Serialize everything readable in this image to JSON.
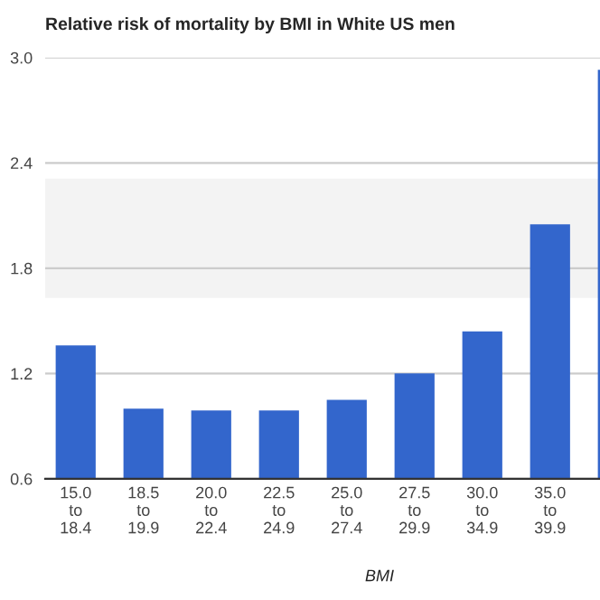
{
  "chart_data": {
    "type": "bar",
    "title": "Relative risk of mortality by BMI in White US men",
    "xlabel": "BMI",
    "categories": [
      "15.0\nto\n18.4",
      "18.5\nto\n19.9",
      "20.0\nto\n22.4",
      "22.5\nto\n24.9",
      "25.0\nto\n27.4",
      "27.5\nto\n29.9",
      "30.0\nto\n34.9",
      "35.0\nto\n39.9",
      null
    ],
    "values": [
      1.36,
      1.0,
      0.99,
      0.99,
      1.05,
      1.2,
      1.44,
      2.05,
      2.93
    ],
    "color": "#3366cc",
    "ylim": [
      0.6,
      3.0
    ],
    "yticks": [
      {
        "value": 0.6,
        "label": "0.6"
      },
      {
        "value": 1.2,
        "label": "1.2"
      },
      {
        "value": 1.8,
        "label": "1.8"
      },
      {
        "value": 2.4,
        "label": "2.4"
      },
      {
        "value": 3.0,
        "label": "3.0"
      }
    ],
    "grid": "y",
    "bands": [
      {
        "axis": "y",
        "from": 1.63,
        "to": 2.31,
        "color": "#f3f3f3"
      }
    ]
  }
}
